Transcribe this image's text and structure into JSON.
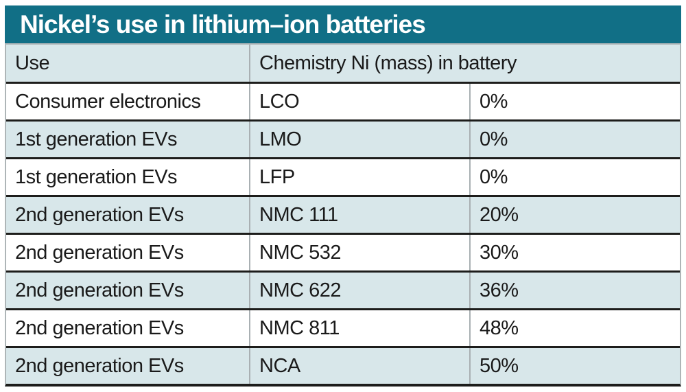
{
  "title": "Nickel’s use in lithium–ion batteries",
  "table": {
    "header": {
      "use": "Use",
      "chemistry_ni": "Chemistry Ni (mass) in battery"
    },
    "rows": [
      {
        "use": "Consumer electronics",
        "chemistry": "LCO",
        "ni_mass": "0%"
      },
      {
        "use": "1st generation EVs",
        "chemistry": "LMO",
        "ni_mass": "0%"
      },
      {
        "use": "1st generation EVs",
        "chemistry": "LFP",
        "ni_mass": "0%"
      },
      {
        "use": "2nd generation EVs",
        "chemistry": "NMC 111",
        "ni_mass": "20%"
      },
      {
        "use": "2nd generation EVs",
        "chemistry": "NMC 532",
        "ni_mass": "30%"
      },
      {
        "use": "2nd generation EVs",
        "chemistry": "NMC 622",
        "ni_mass": "36%"
      },
      {
        "use": "2nd generation EVs",
        "chemistry": "NMC 811",
        "ni_mass": "48%"
      },
      {
        "use": "2nd generation EVs",
        "chemistry": "NCA",
        "ni_mass": "50%"
      }
    ]
  },
  "chart_data": {
    "type": "table",
    "title": "Nickel’s use in lithium–ion batteries",
    "columns": [
      "Use",
      "Chemistry",
      "Ni (mass) in battery"
    ],
    "rows": [
      [
        "Consumer electronics",
        "LCO",
        "0%"
      ],
      [
        "1st generation EVs",
        "LMO",
        "0%"
      ],
      [
        "1st generation EVs",
        "LFP",
        "0%"
      ],
      [
        "2nd generation EVs",
        "NMC 111",
        "20%"
      ],
      [
        "2nd generation EVs",
        "NMC 532",
        "30%"
      ],
      [
        "2nd generation EVs",
        "NMC 622",
        "36%"
      ],
      [
        "2nd generation EVs",
        "NMC 811",
        "48%"
      ],
      [
        "2nd generation EVs",
        "NCA",
        "50%"
      ]
    ],
    "ni_mass_values_pct": [
      0,
      0,
      0,
      20,
      30,
      36,
      48,
      50
    ]
  },
  "colors": {
    "title_bar_bg": "#116f86",
    "title_text": "#ffffff",
    "row_alt_bg": "#d8e7ea",
    "row_bg": "#ffffff",
    "rule_dark": "#1d1d1b",
    "divider_gray": "#a9b0b3",
    "text": "#1a1a1a"
  }
}
